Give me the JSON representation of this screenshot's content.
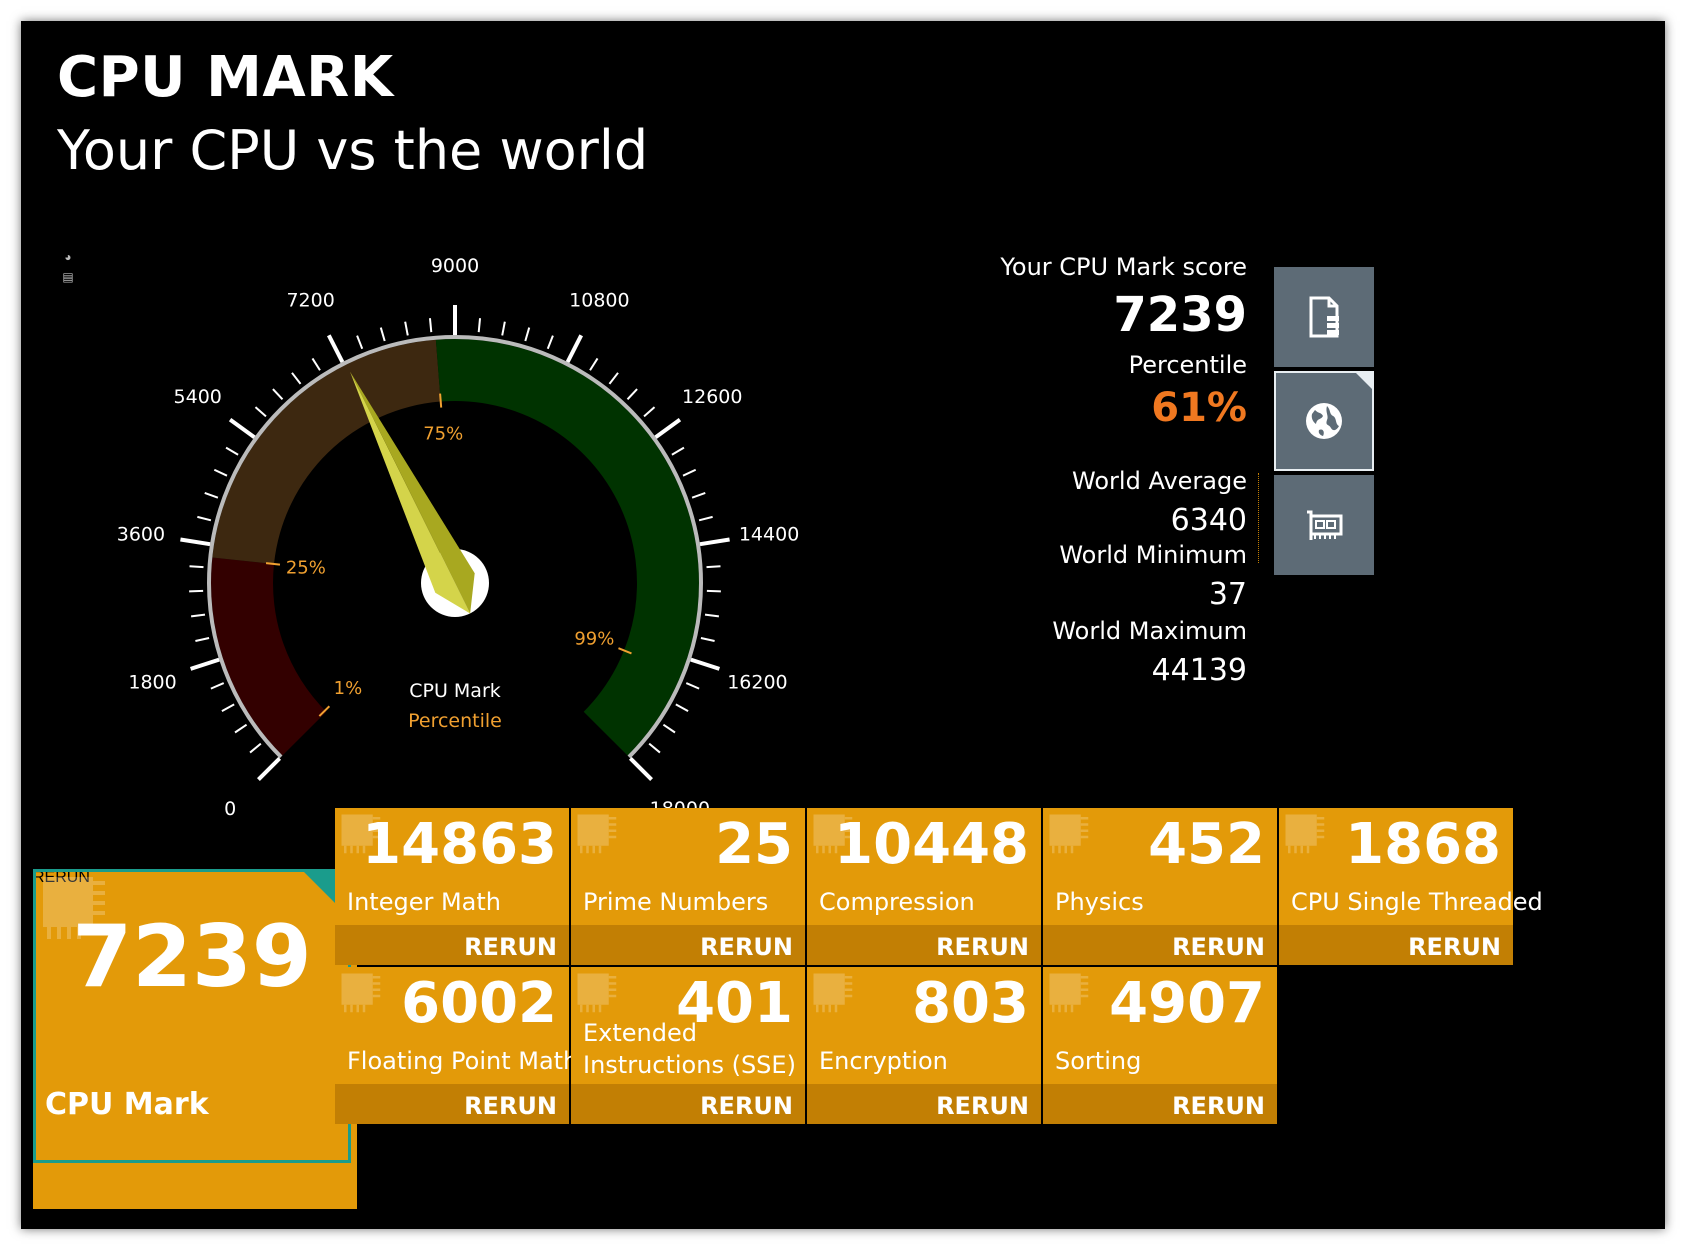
{
  "header": {
    "title": "CPU MARK",
    "subtitle": "Your CPU vs the world"
  },
  "gauge": {
    "min": 0,
    "max": 18000,
    "major_ticks": [
      "0",
      "1800",
      "3600",
      "5400",
      "7200",
      "9000",
      "10800",
      "12600",
      "14400",
      "16200",
      "18000"
    ],
    "value": 7239,
    "percentile_markers": [
      {
        "label": "1%",
        "value": 37
      },
      {
        "label": "25%",
        "value": 3400
      },
      {
        "label": "75%",
        "value": 8700
      },
      {
        "label": "99%",
        "value": 16450
      }
    ],
    "bands": [
      {
        "from": 0,
        "to": 3400,
        "color": "#330000"
      },
      {
        "from": 3400,
        "to": 8700,
        "color": "#3d2810"
      },
      {
        "from": 8700,
        "to": 18000,
        "color": "#003300"
      }
    ],
    "center_label": "CPU Mark",
    "center_sublabel": "Percentile",
    "label_color": "#ffffff",
    "percentile_color": "#f0a030",
    "needle_color": "#d4d44a"
  },
  "score": {
    "your_label": "Your CPU Mark score",
    "your_value": "7239",
    "percentile_label": "Percentile",
    "percentile_value": "61%",
    "percentile_color": "#f07820",
    "avg_label": "World Average",
    "avg_value": "6340",
    "min_label": "World Minimum",
    "min_value": "37",
    "max_label": "World Maximum",
    "max_value": "44139"
  },
  "side_buttons": [
    {
      "icon": "document-chart-icon"
    },
    {
      "icon": "globe-icon"
    },
    {
      "icon": "cpu-card-icon"
    }
  ],
  "main_tile": {
    "value": "7239",
    "label": "CPU Mark",
    "rerun": "RERUN"
  },
  "tiles": [
    {
      "value": "14863",
      "label": "Integer Math",
      "rerun": "RERUN"
    },
    {
      "value": "25",
      "label": "Prime Numbers",
      "rerun": "RERUN"
    },
    {
      "value": "10448",
      "label": "Compression",
      "rerun": "RERUN"
    },
    {
      "value": "452",
      "label": "Physics",
      "rerun": "RERUN"
    },
    {
      "value": "1868",
      "label": "CPU Single Threaded",
      "rerun": "RERUN"
    },
    {
      "value": "6002",
      "label": "Floating Point Math",
      "rerun": "RERUN"
    },
    {
      "value": "401",
      "label": "Extended Instructions (SSE)",
      "rerun": "RERUN"
    },
    {
      "value": "803",
      "label": "Encryption",
      "rerun": "RERUN"
    },
    {
      "value": "4907",
      "label": "Sorting",
      "rerun": "RERUN"
    }
  ],
  "colors": {
    "tile": "#e39a09",
    "tile_bar": "#c27f04",
    "accent": "#1a9c8c",
    "side_button": "#5d6b76"
  }
}
